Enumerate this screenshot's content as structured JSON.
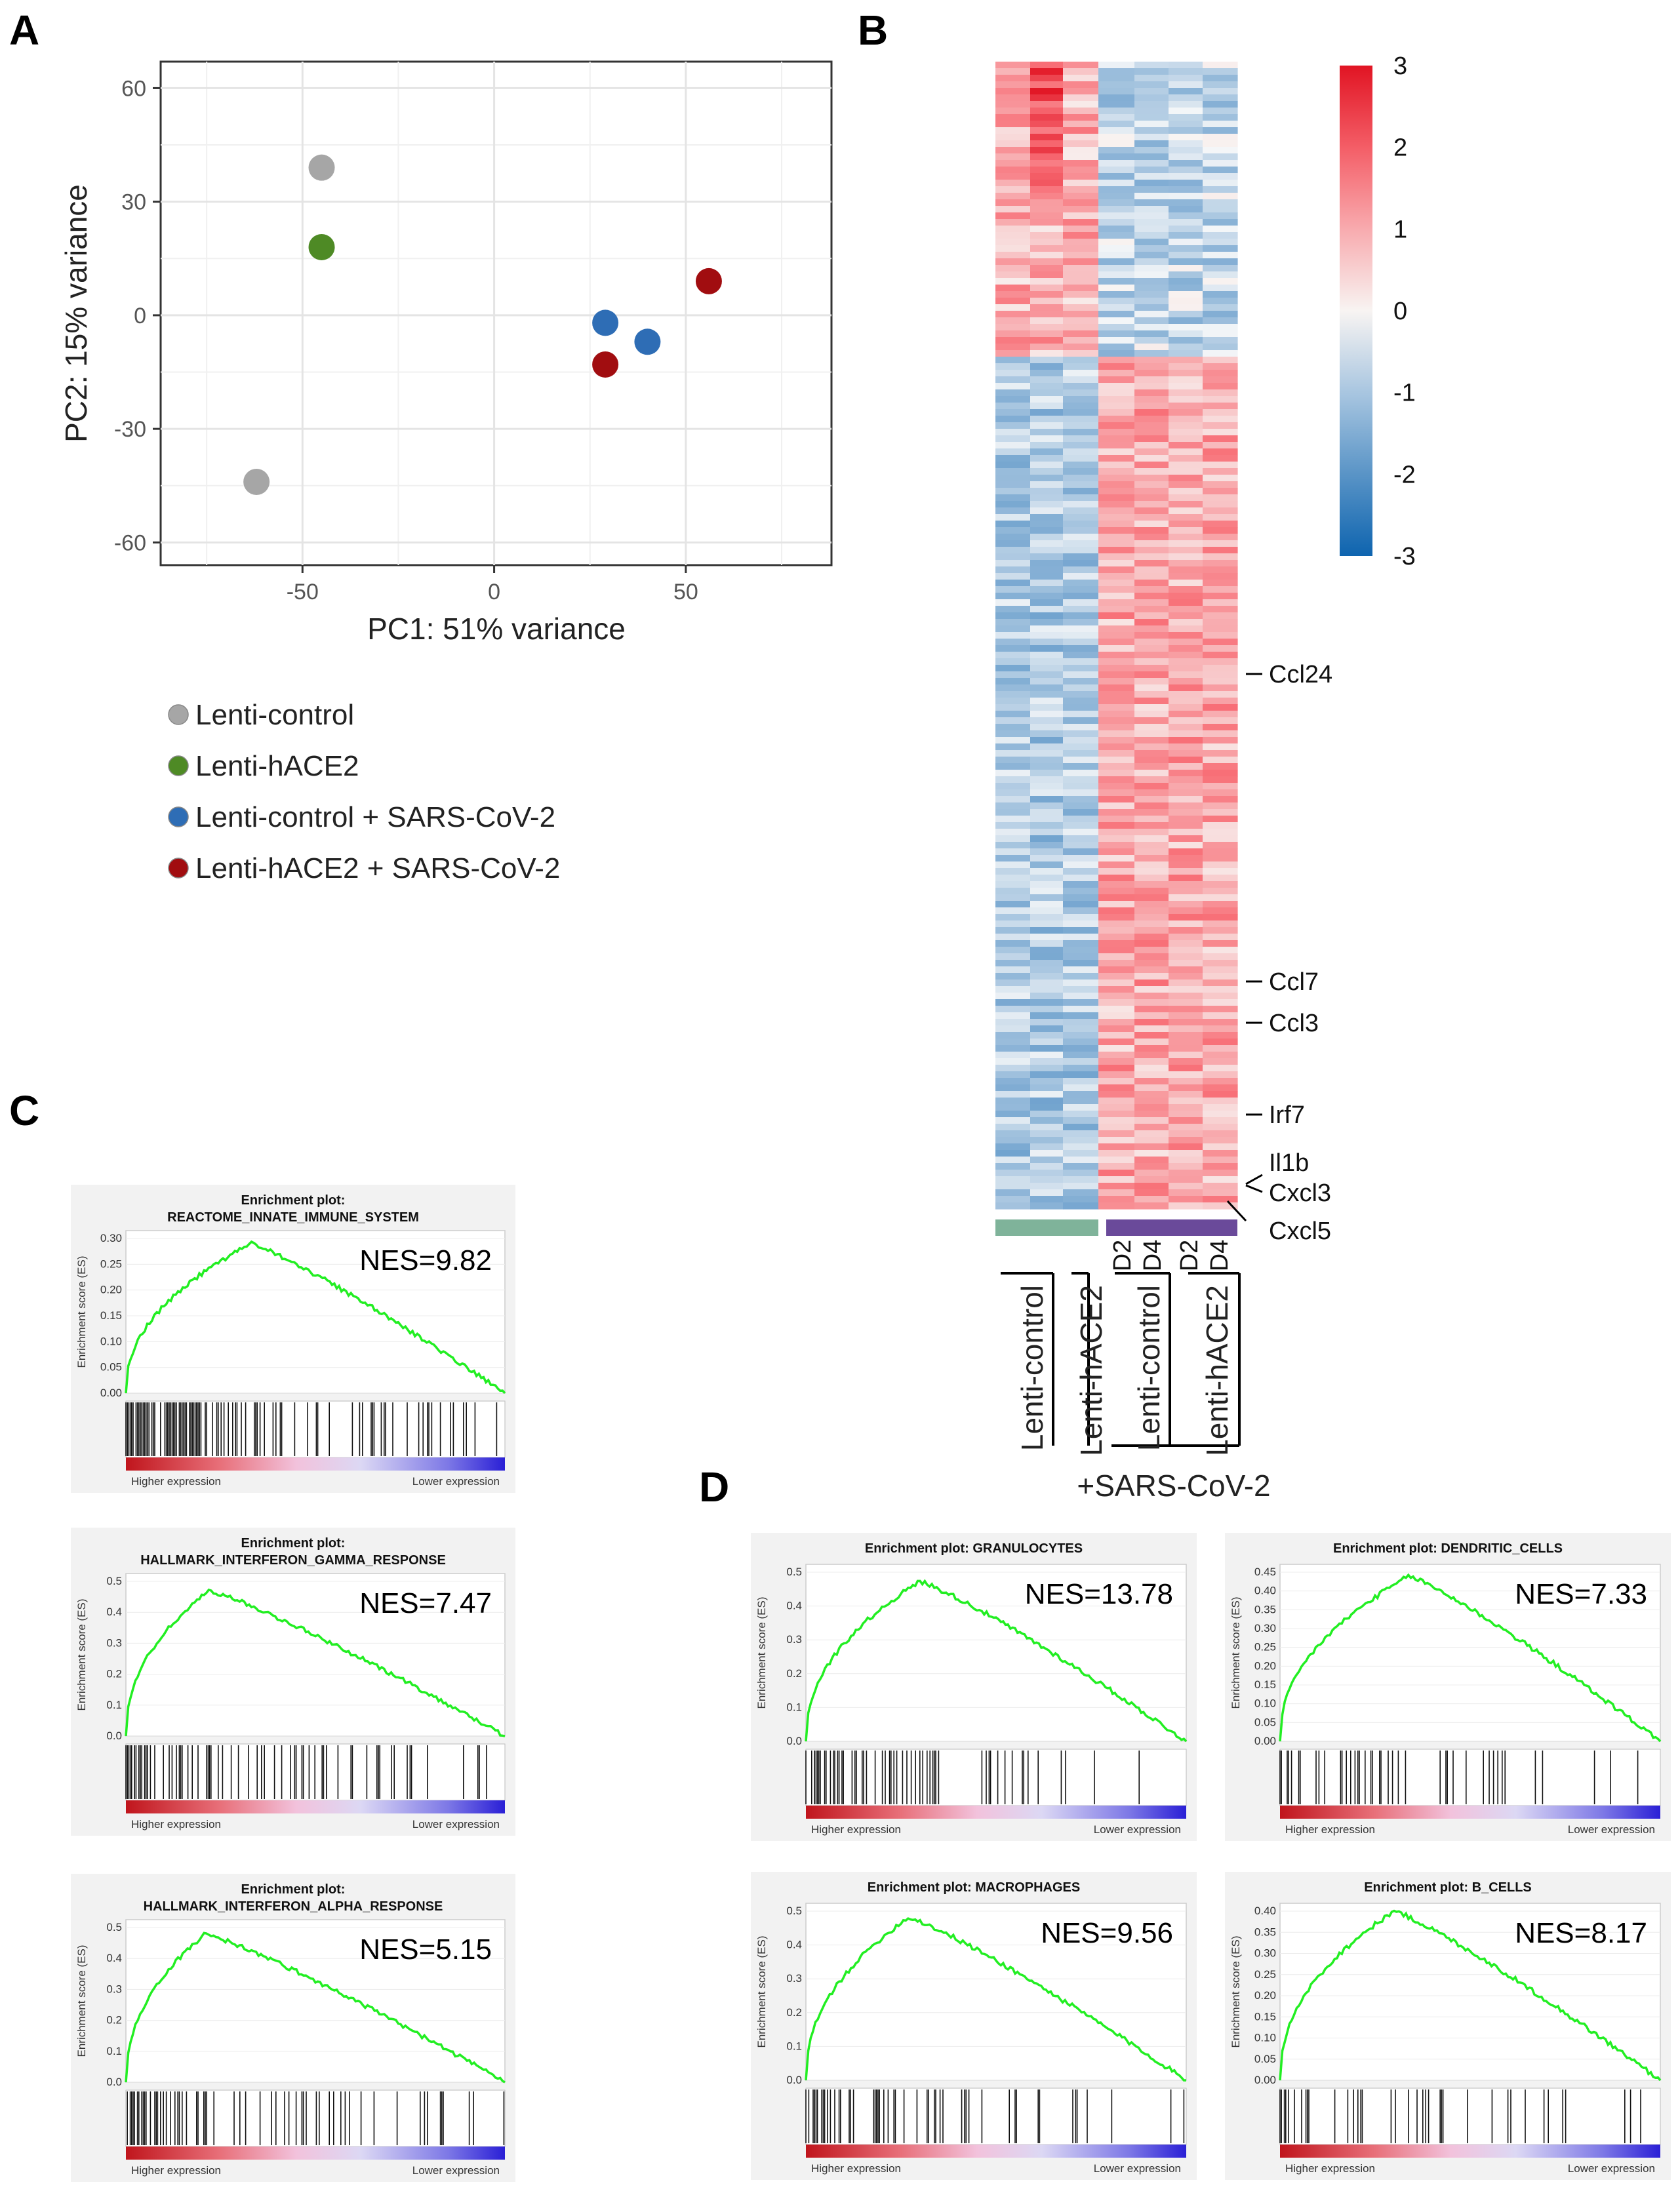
{
  "panels": {
    "a": "A",
    "b": "B",
    "c": "C",
    "d": "D"
  },
  "colors": {
    "lenti_control": "#a6a6a6",
    "lenti_hace2": "#4e8a25",
    "lenti_control_sars": "#2e6db5",
    "lenti_hace2_sars": "#a10d10",
    "es_curve": "#22ee22",
    "bar_group1": "#7fb39a",
    "bar_group2": "#6a4a9a"
  },
  "chart_data": [
    {
      "type": "scatter",
      "xlabel": "PC1: 51% variance",
      "ylabel": "PC2: 15% variance",
      "xlim": [
        -87,
        88
      ],
      "ylim": [
        -66,
        67
      ],
      "xticks": [
        -50,
        0,
        50
      ],
      "yticks": [
        -60,
        -30,
        0,
        30,
        60
      ],
      "grid": true,
      "legend_position": "bottom-left",
      "series": [
        {
          "name": "Lenti-control",
          "color": "#a6a6a6",
          "points": [
            [
              -45,
              39
            ],
            [
              -62,
              -44
            ]
          ]
        },
        {
          "name": "Lenti-hACE2",
          "color": "#4e8a25",
          "points": [
            [
              -45,
              18
            ]
          ]
        },
        {
          "name": "Lenti-control  + SARS-CoV-2",
          "color": "#2e6db5",
          "points": [
            [
              29,
              -2
            ],
            [
              40,
              -7
            ]
          ]
        },
        {
          "name": "Lenti-hACE2  + SARS-CoV-2",
          "color": "#a10d10",
          "points": [
            [
              56,
              9
            ],
            [
              29,
              -13
            ]
          ]
        }
      ]
    },
    {
      "type": "heatmap",
      "color_range": [
        -3,
        3
      ],
      "colorbar_ticks": [
        "3",
        "2",
        "1",
        "0",
        "-1",
        "-2",
        "-3"
      ],
      "gene_labels": [
        "Ccl24",
        "Ccl7",
        "Ccl3",
        "Irf7",
        "Il1b",
        "Cxcl3",
        "Cxcl5"
      ],
      "day_labels": [
        "D2",
        "D4",
        "D2",
        "D4"
      ],
      "group_labels": [
        "Lenti-control",
        "Lenti-hACE2",
        "Lenti-control",
        "Lenti-hACE2"
      ],
      "condition_label": "+SARS-CoV-2"
    },
    {
      "type": "line",
      "kind": "gsea_enrichment",
      "title_line1": "Enrichment plot:",
      "title_line2": "REACTOME_INNATE_IMMUNE_SYSTEM",
      "nes": "NES=9.82",
      "ylabel": "Enrichment score (ES)",
      "yticks": [
        "0.30",
        "0.25",
        "0.20",
        "0.15",
        "0.10",
        "0.05",
        "0.00"
      ],
      "ylim": [
        0,
        0.3
      ],
      "peak_es": 0.29,
      "peak_position": 0.33,
      "higher_label": "Higher expression",
      "lower_label": "Lower expression"
    },
    {
      "type": "line",
      "kind": "gsea_enrichment",
      "title_line1": "Enrichment plot:",
      "title_line2": "HALLMARK_INTERFERON_GAMMA_RESPONSE",
      "nes": "NES=7.47",
      "ylabel": "Enrichment score (ES)",
      "yticks": [
        "0.5",
        "0.4",
        "0.3",
        "0.2",
        "0.1",
        "0.0"
      ],
      "ylim": [
        0,
        0.5
      ],
      "peak_es": 0.47,
      "peak_position": 0.22,
      "higher_label": "Higher expression",
      "lower_label": "Lower expression"
    },
    {
      "type": "line",
      "kind": "gsea_enrichment",
      "title_line1": "Enrichment plot:",
      "title_line2": "HALLMARK_INTERFERON_ALPHA_RESPONSE",
      "nes": "NES=5.15",
      "ylabel": "Enrichment score (ES)",
      "yticks": [
        "0.5",
        "0.4",
        "0.3",
        "0.2",
        "0.1",
        "0.0"
      ],
      "ylim": [
        0,
        0.5
      ],
      "peak_es": 0.48,
      "peak_position": 0.21,
      "higher_label": "Higher expression",
      "lower_label": "Lower expression"
    },
    {
      "type": "line",
      "kind": "gsea_enrichment",
      "title_line1": "Enrichment plot: GRANULOCYTES",
      "title_line2": "",
      "nes": "NES=13.78",
      "ylabel": "Enrichment score (ES)",
      "yticks": [
        "0.5",
        "0.4",
        "0.3",
        "0.2",
        "0.1",
        "0.0"
      ],
      "ylim": [
        0,
        0.55
      ],
      "peak_es": 0.52,
      "peak_position": 0.3,
      "higher_label": "Higher expression",
      "lower_label": "Lower expression"
    },
    {
      "type": "line",
      "kind": "gsea_enrichment",
      "title_line1": "Enrichment plot: DENDRITIC_CELLS",
      "title_line2": "",
      "nes": "NES=7.33",
      "ylabel": "Enrichment score (ES)",
      "yticks": [
        "0.45",
        "0.40",
        "0.35",
        "0.30",
        "0.25",
        "0.20",
        "0.15",
        "0.10",
        "0.05",
        "0.00"
      ],
      "ylim": [
        0,
        0.45
      ],
      "peak_es": 0.44,
      "peak_position": 0.34,
      "higher_label": "Higher expression",
      "lower_label": "Lower expression"
    },
    {
      "type": "line",
      "kind": "gsea_enrichment",
      "title_line1": "Enrichment plot: MACROPHAGES",
      "title_line2": "",
      "nes": "NES=9.56",
      "ylabel": "Enrichment score (ES)",
      "yticks": [
        "0.5",
        "0.4",
        "0.3",
        "0.2",
        "0.1",
        "0.0"
      ],
      "ylim": [
        0,
        0.55
      ],
      "peak_es": 0.53,
      "peak_position": 0.27,
      "higher_label": "Higher expression",
      "lower_label": "Lower expression"
    },
    {
      "type": "line",
      "kind": "gsea_enrichment",
      "title_line1": "Enrichment plot: B_CELLS",
      "title_line2": "",
      "nes": "NES=8.17",
      "ylabel": "Enrichment score (ES)",
      "yticks": [
        "0.40",
        "0.35",
        "0.30",
        "0.25",
        "0.20",
        "0.15",
        "0.10",
        "0.05",
        "0.00"
      ],
      "ylim": [
        0,
        0.42
      ],
      "peak_es": 0.42,
      "peak_position": 0.3,
      "higher_label": "Higher expression",
      "lower_label": "Lower expression"
    }
  ]
}
